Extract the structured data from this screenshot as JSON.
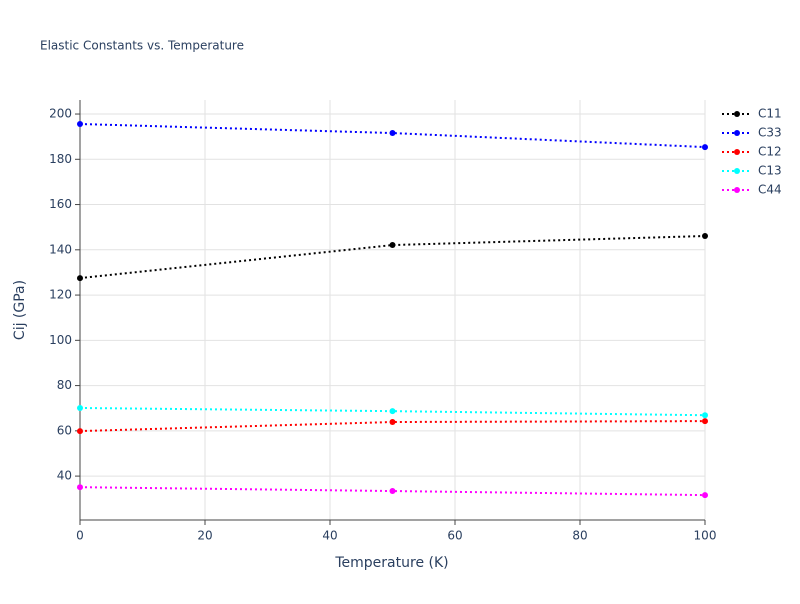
{
  "chart_data": {
    "type": "line",
    "title": "Elastic Constants vs. Temperature",
    "x_label": "Temperature (K)",
    "y_label": "Cij (GPa)",
    "x": [
      0,
      50,
      100
    ],
    "series": [
      {
        "name": "C11",
        "color": "#000000",
        "values": [
          127.5,
          142.1,
          146.1
        ]
      },
      {
        "name": "C33",
        "color": "#0000ff",
        "values": [
          195.6,
          191.6,
          185.4
        ]
      },
      {
        "name": "C12",
        "color": "#ff0000",
        "values": [
          59.9,
          63.9,
          64.3
        ]
      },
      {
        "name": "C13",
        "color": "#00ffff",
        "values": [
          70.1,
          68.7,
          66.9
        ]
      },
      {
        "name": "C44",
        "color": "#ff00ff",
        "values": [
          35.1,
          33.4,
          31.6
        ]
      }
    ],
    "xlim": [
      0,
      100
    ],
    "xticks": [
      0,
      20,
      40,
      60,
      80,
      100
    ],
    "ylim": [
      20.6,
      206.2
    ],
    "yticks": [
      40,
      60,
      80,
      100,
      120,
      140,
      160,
      180,
      200
    ],
    "grid": true,
    "legend": "right",
    "line_style": "dot"
  }
}
